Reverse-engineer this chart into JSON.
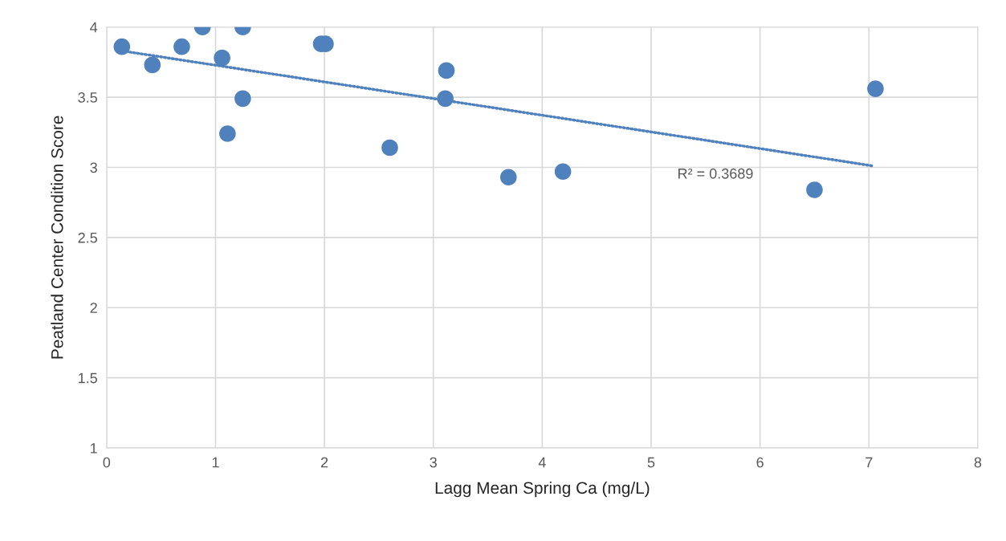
{
  "chart_data": {
    "type": "scatter",
    "xlabel": "Lagg Mean Spring Ca (mg/L)",
    "ylabel": "Peatland Center Condition Score",
    "series": [
      {
        "color": "#4f81bd",
        "marker": "circle",
        "x": [
          0.14,
          0.42,
          0.69,
          0.88,
          1.06,
          1.11,
          1.25,
          1.25,
          1.97,
          2.01,
          2.6,
          3.12,
          3.11,
          3.69,
          4.19,
          6.5,
          7.06
        ],
        "values": [
          3.86,
          3.73,
          3.86,
          4.0,
          3.78,
          3.24,
          4.0,
          3.49,
          3.88,
          3.88,
          3.14,
          3.69,
          3.49,
          2.93,
          2.97,
          2.84,
          3.56
        ]
      },
      {
        "type": "line",
        "color": "#4f81bd",
        "line_style": "dotted",
        "x": [
          0.14,
          7.04
        ],
        "values": [
          3.83,
          3.01
        ]
      }
    ],
    "annotations": [
      "R² = 0.3689"
    ],
    "xlim": [
      0,
      8
    ],
    "xticks": [
      0,
      1,
      2,
      3,
      4,
      5,
      6,
      7,
      8
    ],
    "ylim": [
      1,
      4
    ],
    "yticks": [
      1,
      1.5,
      2,
      2.5,
      3,
      3.5,
      4
    ],
    "grid": true,
    "legend": false
  }
}
